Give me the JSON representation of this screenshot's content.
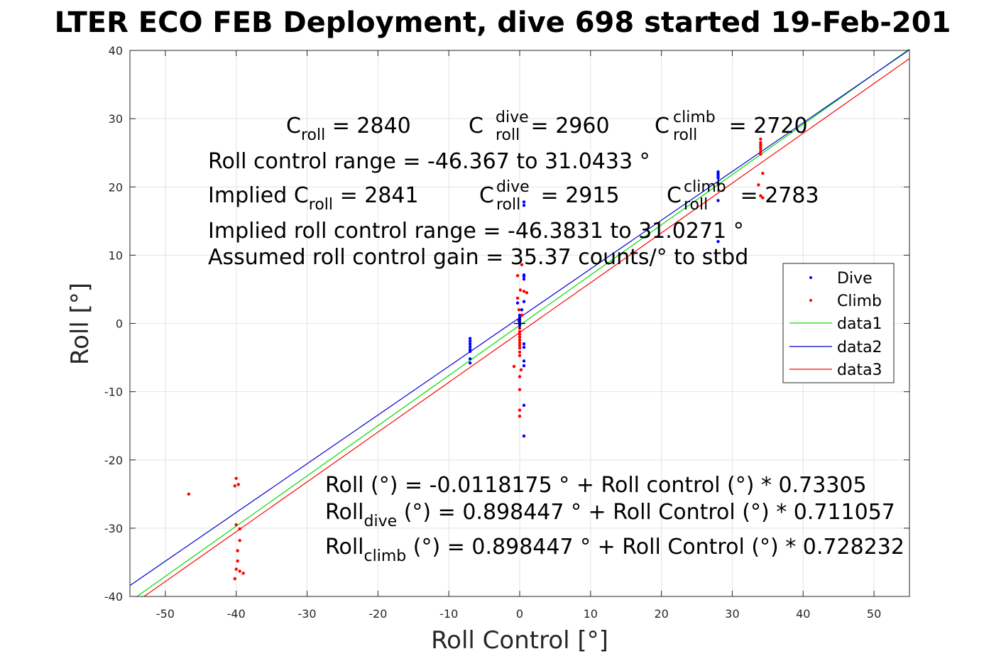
{
  "title": "LTER ECO FEB Deployment, dive 698 started 19-Feb-201",
  "chart_data": {
    "type": "scatter",
    "title": "LTER ECO FEB Deployment, dive 698 started 19-Feb-201",
    "xlabel": "Roll Control [°]",
    "ylabel": "Roll [°]",
    "xlim": [
      -55,
      55
    ],
    "ylim": [
      -40,
      40
    ],
    "xticks": [
      -50,
      -40,
      -30,
      -20,
      -10,
      0,
      10,
      20,
      30,
      40,
      50
    ],
    "yticks": [
      -40,
      -30,
      -20,
      -10,
      0,
      10,
      20,
      30,
      40
    ],
    "grid": true,
    "legend_position": "right",
    "series": [
      {
        "name": "Dive",
        "kind": "points",
        "color": "#0000ff",
        "points": [
          [
            -7,
            -2.2
          ],
          [
            -7,
            -2.6
          ],
          [
            -7,
            -3.0
          ],
          [
            -7,
            -3.4
          ],
          [
            -7,
            -3.8
          ],
          [
            -7,
            -4.1
          ],
          [
            -7,
            -5.2
          ],
          [
            -7,
            -5.8
          ],
          [
            0,
            0
          ],
          [
            0,
            0.3
          ],
          [
            0,
            0.6
          ],
          [
            0,
            0.9
          ],
          [
            0,
            1.2
          ],
          [
            0,
            -0.3
          ],
          [
            -0.1,
            0.4
          ],
          [
            -0.3,
            3
          ],
          [
            0.3,
            2
          ],
          [
            0.6,
            3.2
          ],
          [
            0.6,
            6.5
          ],
          [
            0.6,
            6.9
          ],
          [
            0.6,
            7.1
          ],
          [
            0.6,
            17.3
          ],
          [
            0.6,
            17.8
          ],
          [
            0.6,
            -3
          ],
          [
            0.6,
            -3.5
          ],
          [
            0.6,
            -5.5
          ],
          [
            0.6,
            -6.2
          ],
          [
            0.6,
            -12
          ],
          [
            0.6,
            -16.5
          ],
          [
            28,
            21.3
          ],
          [
            28,
            21.6
          ],
          [
            28,
            21.9
          ],
          [
            28,
            22.2
          ],
          [
            28,
            20.5
          ],
          [
            28,
            18
          ],
          [
            28,
            12
          ]
        ]
      },
      {
        "name": "Climb",
        "kind": "points",
        "color": "#ff0000",
        "points": [
          [
            -46.7,
            -25
          ],
          [
            -40,
            -22.7
          ],
          [
            -40.2,
            -23.8
          ],
          [
            -39.7,
            -23.6
          ],
          [
            -40,
            -29.5
          ],
          [
            -39.5,
            -30.1
          ],
          [
            -39.5,
            -31.8
          ],
          [
            -39.8,
            -33.3
          ],
          [
            -39.8,
            -34.8
          ],
          [
            -40,
            -36
          ],
          [
            -40.2,
            -37.4
          ],
          [
            -39.5,
            -36.3
          ],
          [
            -39,
            -36.6
          ],
          [
            0.3,
            8.6
          ],
          [
            -0.3,
            7
          ],
          [
            0.1,
            4.9
          ],
          [
            0.6,
            4.7
          ],
          [
            1,
            4.5
          ],
          [
            -0.3,
            3.7
          ],
          [
            -0.1,
            2
          ],
          [
            0.3,
            1.2
          ],
          [
            0,
            -0.7
          ],
          [
            0,
            -1.2
          ],
          [
            0,
            -1.6
          ],
          [
            0,
            -2
          ],
          [
            0,
            -2.4
          ],
          [
            0,
            -2.8
          ],
          [
            0,
            -3.2
          ],
          [
            0,
            -3.6
          ],
          [
            0,
            -4.2
          ],
          [
            0,
            -4.7
          ],
          [
            -0.8,
            -6.3
          ],
          [
            0.2,
            -6.8
          ],
          [
            0,
            -7.8
          ],
          [
            0,
            -9.7
          ],
          [
            0,
            -12.7
          ],
          [
            0,
            -13.6
          ],
          [
            34,
            27
          ],
          [
            34,
            26.5
          ],
          [
            34,
            26.2
          ],
          [
            34,
            25.9
          ],
          [
            34,
            25.6
          ],
          [
            34,
            25.2
          ],
          [
            34,
            24.8
          ],
          [
            34.3,
            22
          ],
          [
            33.7,
            20.3
          ],
          [
            34,
            18.7
          ],
          [
            34.3,
            18.4
          ]
        ]
      },
      {
        "name": "data1",
        "kind": "line",
        "color": "#00dd00",
        "x": [
          -54,
          55
        ],
        "y": [
          -40,
          40.2
        ]
      },
      {
        "name": "data2",
        "kind": "line",
        "color": "#0000cc",
        "x": [
          -55,
          55
        ],
        "y": [
          -38.4,
          40.1
        ]
      },
      {
        "name": "data3",
        "kind": "line",
        "color": "#ff0000",
        "x": [
          -53,
          55
        ],
        "y": [
          -40,
          38.8
        ]
      }
    ],
    "markers": [
      {
        "kind": "cross",
        "color": "#000000",
        "x": 0,
        "y": 0
      }
    ]
  },
  "annotations": {
    "line1": {
      "c1": "C",
      "s1": "roll",
      "v1": " = 2840",
      "c2": "C",
      "p2": "dive",
      "s2": "roll",
      "v2": " = 2960",
      "c3": "C",
      "p3": "climb",
      "s3": "roll",
      "v3": " = 2720"
    },
    "line2": "Roll control range = -46.367 to 31.0433 °",
    "line3": {
      "c1": "Implied C",
      "s1": "roll",
      "v1": " = 2841",
      "c2": "C",
      "p2": "dive",
      "s2": "roll",
      "v2": " = 2915",
      "c3": "C",
      "p3": "climb",
      "s3": "roll",
      "v3": " = 2783"
    },
    "line4": "Implied roll control range = -46.3831 to 31.0271 °",
    "line5": "Assumed roll control gain = 35.37 counts/° to stbd",
    "eq1": "Roll (°) = -0.0118175 ° + Roll control (°) * 0.73305",
    "eq2": {
      "a": "Roll",
      "s": "dive",
      "b": " (°) = 0.898447 ° + Roll Control (°) * 0.711057"
    },
    "eq3": {
      "a": "Roll",
      "s": "climb",
      "b": " (°) = 0.898447 ° + Roll Control (°) * 0.728232"
    }
  },
  "legend": {
    "entries": [
      "Dive",
      "Climb",
      "data1",
      "data2",
      "data3"
    ]
  }
}
